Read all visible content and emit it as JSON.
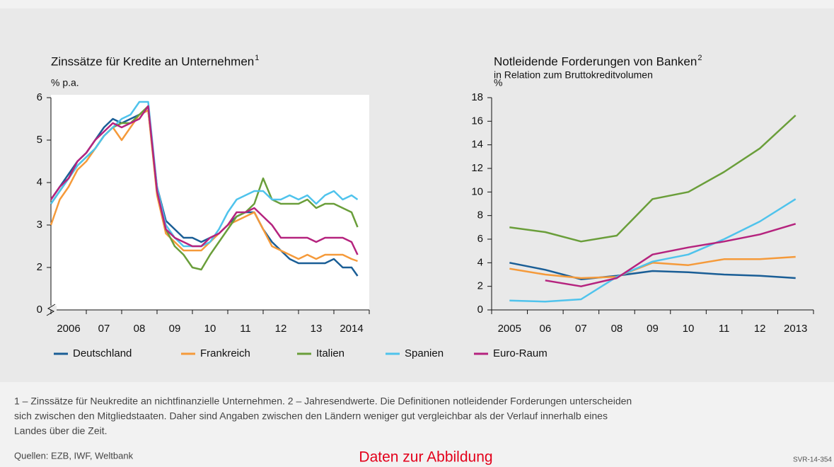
{
  "chart_data": [
    {
      "type": "line",
      "title": "Zinssätze für Kredite an Unternehmen",
      "title_note": "1",
      "y_unit": "% p.a.",
      "plot_background": "#ffffff",
      "x": [
        2006,
        2006.25,
        2006.5,
        2006.75,
        2007,
        2007.25,
        2007.5,
        2007.75,
        2008,
        2008.25,
        2008.5,
        2008.75,
        2009,
        2009.25,
        2009.5,
        2009.75,
        2010,
        2010.25,
        2010.5,
        2010.75,
        2011,
        2011.25,
        2011.5,
        2011.75,
        2012,
        2012.25,
        2012.5,
        2012.75,
        2013,
        2013.25,
        2013.5,
        2013.75,
        2014,
        2014.25,
        2014.5,
        2014.67
      ],
      "xlim": [
        2006,
        2015
      ],
      "xticks": [
        2006,
        2007,
        2008,
        2009,
        2010,
        2011,
        2012,
        2013,
        2014,
        2015
      ],
      "categories": [
        "2006",
        "07",
        "08",
        "09",
        "10",
        "11",
        "12",
        "13",
        "2014"
      ],
      "ylim": [
        0,
        6
      ],
      "yticks": [
        0,
        2,
        3,
        4,
        5,
        6
      ],
      "axis_break": [
        0,
        1
      ],
      "series": [
        {
          "name": "Deutschland",
          "color": "#1a5e96",
          "values": [
            3.6,
            3.9,
            4.2,
            4.5,
            4.7,
            5.0,
            5.3,
            5.5,
            5.4,
            5.5,
            5.6,
            5.7,
            3.9,
            3.1,
            2.9,
            2.7,
            2.7,
            2.6,
            2.7,
            2.8,
            3.0,
            3.2,
            3.3,
            3.3,
            2.9,
            2.6,
            2.4,
            2.2,
            2.1,
            2.1,
            2.1,
            2.1,
            2.2,
            2.0,
            2.0,
            1.8
          ]
        },
        {
          "name": "Frankreich",
          "color": "#f59a3a",
          "values": [
            3.0,
            3.6,
            3.9,
            4.3,
            4.5,
            4.8,
            5.1,
            5.3,
            5.0,
            5.3,
            5.6,
            5.7,
            3.7,
            2.8,
            2.6,
            2.4,
            2.4,
            2.4,
            2.6,
            2.8,
            3.0,
            3.1,
            3.2,
            3.3,
            2.9,
            2.5,
            2.4,
            2.3,
            2.2,
            2.3,
            2.2,
            2.3,
            2.3,
            2.3,
            2.2,
            2.15
          ]
        },
        {
          "name": "Italien",
          "color": "#6a9e3a",
          "values": [
            3.5,
            3.8,
            4.1,
            4.4,
            4.6,
            4.8,
            5.1,
            5.3,
            5.4,
            5.4,
            5.6,
            5.8,
            3.8,
            2.9,
            2.5,
            2.3,
            2.0,
            1.95,
            2.3,
            2.6,
            2.9,
            3.2,
            3.3,
            3.5,
            4.1,
            3.6,
            3.5,
            3.5,
            3.5,
            3.6,
            3.4,
            3.5,
            3.5,
            3.4,
            3.3,
            2.95
          ]
        },
        {
          "name": "Spanien",
          "color": "#4fc3ec",
          "values": [
            3.5,
            3.8,
            4.1,
            4.4,
            4.6,
            4.8,
            5.1,
            5.3,
            5.5,
            5.6,
            5.9,
            5.9,
            3.9,
            3.0,
            2.7,
            2.5,
            2.5,
            2.5,
            2.6,
            2.9,
            3.3,
            3.6,
            3.7,
            3.8,
            3.8,
            3.6,
            3.6,
            3.7,
            3.6,
            3.7,
            3.5,
            3.7,
            3.8,
            3.6,
            3.7,
            3.6
          ]
        },
        {
          "name": "Euro-Raum",
          "color": "#b5237e",
          "values": [
            3.6,
            3.9,
            4.1,
            4.5,
            4.7,
            5.0,
            5.2,
            5.4,
            5.3,
            5.4,
            5.5,
            5.8,
            3.8,
            2.9,
            2.7,
            2.6,
            2.5,
            2.5,
            2.7,
            2.8,
            3.0,
            3.3,
            3.3,
            3.4,
            3.2,
            3.0,
            2.7,
            2.7,
            2.7,
            2.7,
            2.6,
            2.7,
            2.7,
            2.7,
            2.6,
            2.3
          ]
        }
      ]
    },
    {
      "type": "line",
      "title": "Notleidende Forderungen von Banken",
      "title_note": "2",
      "subtitle": "in Relation zum Bruttokreditvolumen",
      "y_unit": "%",
      "categories": [
        "2005",
        "06",
        "07",
        "08",
        "09",
        "10",
        "11",
        "12",
        "2013"
      ],
      "ylim": [
        0,
        18
      ],
      "yticks": [
        0,
        2,
        4,
        6,
        8,
        10,
        12,
        14,
        16,
        18
      ],
      "series": [
        {
          "name": "Deutschland",
          "color": "#1a5e96",
          "values": [
            4.0,
            3.4,
            2.6,
            2.9,
            3.3,
            3.2,
            3.0,
            2.9,
            2.7
          ]
        },
        {
          "name": "Frankreich",
          "color": "#f59a3a",
          "values": [
            3.5,
            3.0,
            2.7,
            2.8,
            4.0,
            3.8,
            4.3,
            4.3,
            4.5
          ]
        },
        {
          "name": "Italien",
          "color": "#6a9e3a",
          "values": [
            7.0,
            6.6,
            5.8,
            6.3,
            9.4,
            10.0,
            11.7,
            13.7,
            16.5
          ]
        },
        {
          "name": "Spanien",
          "color": "#4fc3ec",
          "values": [
            0.8,
            0.7,
            0.9,
            2.8,
            4.1,
            4.7,
            6.0,
            7.5,
            9.4
          ]
        },
        {
          "name": "Euro-Raum",
          "color": "#b5237e",
          "values": [
            null,
            2.5,
            2.0,
            2.7,
            4.7,
            5.3,
            5.8,
            6.4,
            7.3
          ]
        }
      ]
    }
  ],
  "footnote": [
    "1 – Zinssätze für Neukredite an nichtfinanzielle Unternehmen.  2 – Jahresendwerte. Die Definitionen notleidender Forderungen unterscheiden",
    "sich zwischen den Mitgliedstaaten. Daher sind Angaben zwischen den Ländern weniger gut vergleichbar als der Verlauf innerhalb eines",
    "Landes über die Zeit."
  ],
  "sources": "Quellen: EZB, IWF, Weltbank",
  "link": "Daten zur Abbildung",
  "code": "SVR-14-354"
}
